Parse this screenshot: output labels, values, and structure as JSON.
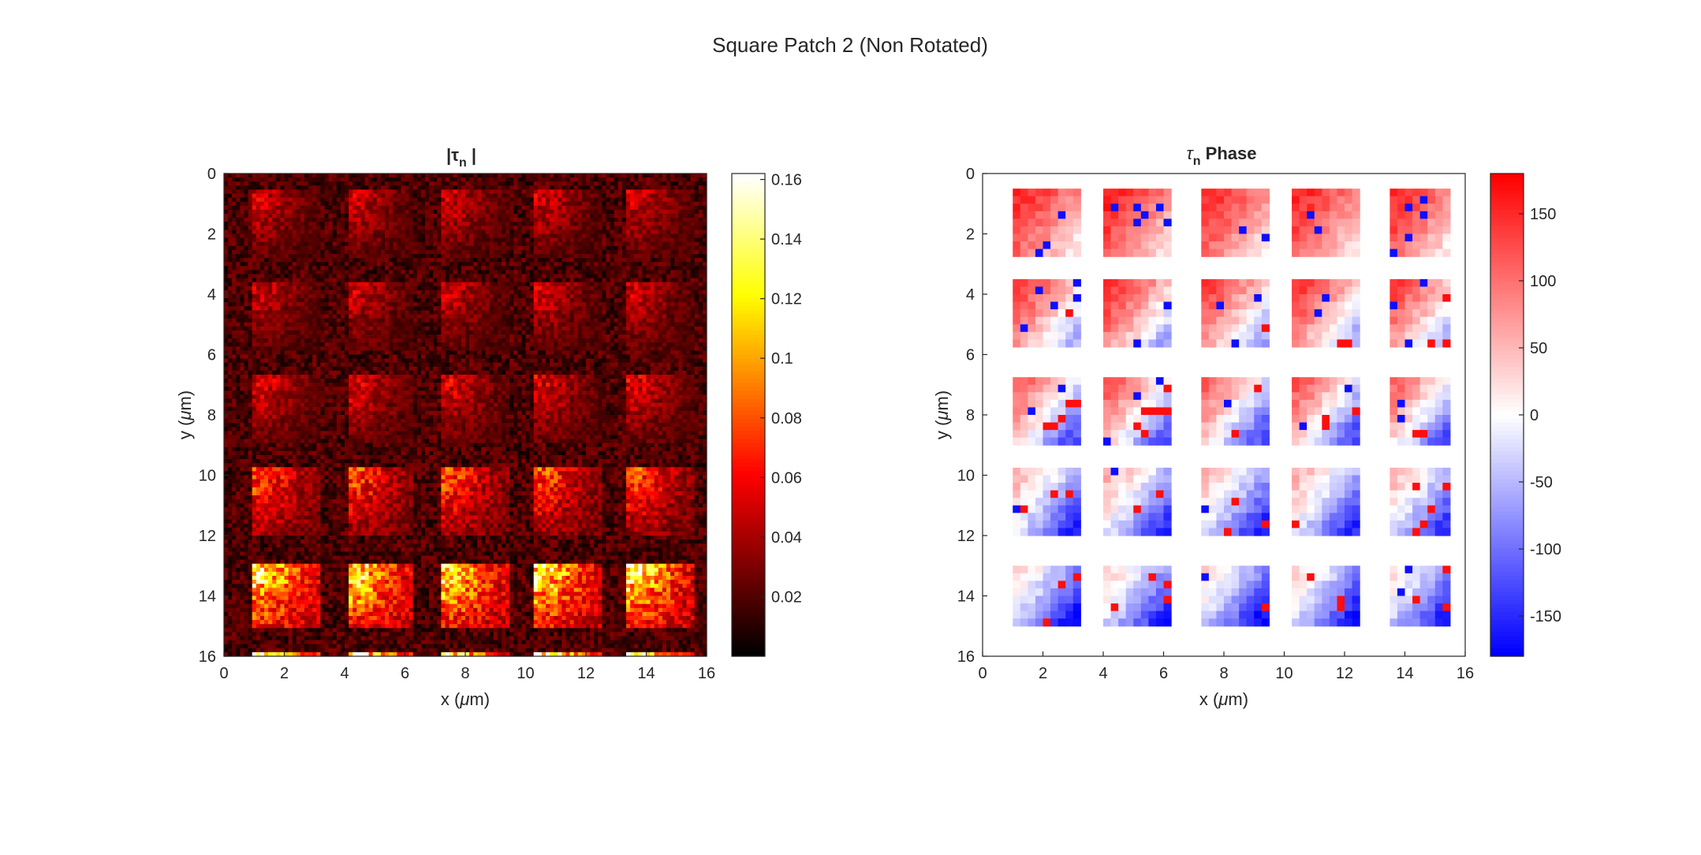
{
  "figure": {
    "title": "Square Patch 2 (Non Rotated)"
  },
  "chart_data": [
    {
      "type": "heatmap",
      "title_main": "|τ",
      "title_sub": "n",
      "title_end": " |",
      "xlabel_pre": "x (",
      "xlabel_mu": "μ",
      "xlabel_post": "m)",
      "ylabel_pre": "y (",
      "ylabel_mu": "μ",
      "ylabel_post": "m)",
      "xlim": [
        0,
        16
      ],
      "ylim": [
        0,
        16
      ],
      "y_reversed": true,
      "xticks": [
        "0",
        "2",
        "4",
        "6",
        "8",
        "10",
        "12",
        "14",
        "16"
      ],
      "yticks": [
        "0",
        "2",
        "4",
        "6",
        "8",
        "10",
        "12",
        "14",
        "16"
      ],
      "colormap": "hot",
      "clim": [
        0,
        0.162
      ],
      "colorbar_ticks": [
        {
          "value": 0.02,
          "label": "0.02"
        },
        {
          "value": 0.04,
          "label": "0.04"
        },
        {
          "value": 0.06,
          "label": "0.06"
        },
        {
          "value": 0.08,
          "label": "0.08"
        },
        {
          "value": 0.1,
          "label": "0.1"
        },
        {
          "value": 0.12,
          "label": "0.12"
        },
        {
          "value": 0.14,
          "label": "0.14"
        },
        {
          "value": 0.16,
          "label": "0.16"
        }
      ],
      "grid_resolution": 120,
      "background_value": 0.018,
      "patch_columns_x": [
        1.0,
        4.1,
        7.2,
        10.3,
        13.4
      ],
      "patch_rows_y": [
        0.6,
        3.6,
        6.7,
        9.8,
        12.9,
        15.9
      ],
      "patch_size": 2.2,
      "row_peak_values": [
        0.055,
        0.055,
        0.06,
        0.085,
        0.14,
        0.15
      ]
    },
    {
      "type": "heatmap",
      "title_main": "τ",
      "title_sub": "n",
      "title_end": " Phase",
      "xlabel_pre": "x (",
      "xlabel_mu": "μ",
      "xlabel_post": "m)",
      "ylabel_pre": "y (",
      "ylabel_mu": "μ",
      "ylabel_post": "m)",
      "xlim": [
        0,
        16
      ],
      "ylim": [
        0,
        16
      ],
      "y_reversed": true,
      "xticks": [
        "0",
        "2",
        "4",
        "6",
        "8",
        "10",
        "12",
        "14",
        "16"
      ],
      "yticks": [
        "0",
        "2",
        "4",
        "6",
        "8",
        "10",
        "12",
        "14",
        "16"
      ],
      "colormap": "blue-white-red",
      "clim": [
        -180,
        180
      ],
      "colorbar_ticks": [
        {
          "value": -150,
          "label": "-150"
        },
        {
          "value": -100,
          "label": "-100"
        },
        {
          "value": -50,
          "label": "-50"
        },
        {
          "value": 0,
          "label": "0"
        },
        {
          "value": 50,
          "label": "50"
        },
        {
          "value": 100,
          "label": "100"
        },
        {
          "value": 150,
          "label": "150"
        }
      ],
      "grid_resolution": 64,
      "patch_columns_x": [
        1.0,
        4.1,
        7.2,
        10.3,
        13.4
      ],
      "patch_rows_y": [
        0.6,
        3.6,
        6.7,
        9.8,
        12.9,
        15.9
      ],
      "patch_size": 2.2,
      "row_phase_top_left": [
        160,
        150,
        130,
        60,
        40,
        20
      ],
      "row_phase_bottom_right": [
        20,
        -60,
        -120,
        -150,
        -170,
        -170
      ],
      "colors": {
        "negative": "#0000ff",
        "zero": "#ffffff",
        "positive": "#ff0000"
      }
    }
  ]
}
